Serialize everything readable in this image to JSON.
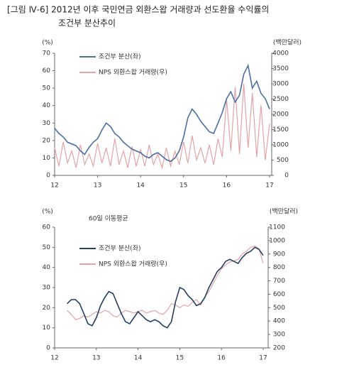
{
  "title_lines": [
    "[그림 Ⅳ-6] 2012년 이후 국민연금 외환스왑 거래량과 선도환율 수익률의",
    "조건부 분산추이"
  ],
  "chart_data": [
    {
      "type": "line",
      "ylabel": "(%)",
      "y2label": "(백만달러)",
      "xlim": [
        12,
        17.05
      ],
      "xticks": [
        12,
        13,
        14,
        15,
        16,
        17
      ],
      "ylim": [
        0,
        70
      ],
      "yticks": [
        0,
        10,
        20,
        30,
        40,
        50,
        60,
        70
      ],
      "y2lim": [
        0,
        4000
      ],
      "y2ticks": [
        0,
        500,
        1000,
        1500,
        2000,
        2500,
        3000,
        3500,
        4000
      ],
      "x": [
        12.0,
        12.1,
        12.2,
        12.3,
        12.4,
        12.5,
        12.6,
        12.7,
        12.8,
        12.9,
        13.0,
        13.1,
        13.2,
        13.3,
        13.4,
        13.5,
        13.6,
        13.7,
        13.8,
        13.9,
        14.0,
        14.1,
        14.2,
        14.3,
        14.4,
        14.5,
        14.6,
        14.7,
        14.8,
        14.9,
        15.0,
        15.1,
        15.2,
        15.3,
        15.4,
        15.5,
        15.6,
        15.7,
        15.8,
        15.9,
        16.0,
        16.1,
        16.2,
        16.3,
        16.4,
        16.5,
        16.6,
        16.7,
        16.8,
        16.9,
        17.0
      ],
      "series": [
        {
          "name": "조건부 분산(좌)",
          "color": "#4a6fa5",
          "axis": "y",
          "values": [
            27,
            24,
            22,
            19,
            18,
            17,
            14,
            12,
            16,
            19,
            21,
            26,
            30,
            28,
            24,
            22,
            19,
            17,
            15,
            14,
            13,
            11,
            10,
            12,
            13,
            11,
            9,
            8,
            10,
            14,
            22,
            33,
            38,
            35,
            31,
            28,
            25,
            24,
            30,
            36,
            44,
            48,
            42,
            46,
            58,
            63,
            50,
            54,
            47,
            44,
            38
          ]
        },
        {
          "name": "NPS 외환스왑 거래량(우)",
          "color": "#e4a3a6",
          "axis": "y2",
          "values": [
            900,
            300,
            1100,
            400,
            800,
            250,
            1000,
            350,
            700,
            300,
            1050,
            400,
            900,
            300,
            1200,
            350,
            800,
            250,
            950,
            300,
            850,
            300,
            1000,
            350,
            700,
            250,
            900,
            300,
            800,
            350,
            1100,
            400,
            1300,
            500,
            900,
            400,
            1000,
            350,
            1200,
            600,
            2500,
            800,
            2900,
            700,
            3000,
            900,
            2700,
            600,
            2300,
            500,
            1700
          ]
        }
      ]
    },
    {
      "type": "line",
      "ylabel": "(%)",
      "y2label": "(백만달러)",
      "annotation": "60일 이동평균",
      "xlim": [
        12,
        17.12
      ],
      "xticks": [
        12,
        13,
        14,
        15,
        16,
        17
      ],
      "ylim": [
        0,
        60
      ],
      "yticks": [
        0,
        10,
        20,
        30,
        40,
        50,
        60
      ],
      "y2lim": [
        200,
        1100
      ],
      "y2ticks": [
        200,
        300,
        400,
        500,
        600,
        700,
        800,
        900,
        1000,
        1100
      ],
      "x": [
        12.3,
        12.4,
        12.5,
        12.6,
        12.7,
        12.8,
        12.9,
        13.0,
        13.1,
        13.2,
        13.3,
        13.4,
        13.5,
        13.6,
        13.7,
        13.8,
        13.9,
        14.0,
        14.1,
        14.2,
        14.3,
        14.4,
        14.5,
        14.6,
        14.7,
        14.8,
        14.9,
        15.0,
        15.1,
        15.2,
        15.3,
        15.4,
        15.5,
        15.6,
        15.7,
        15.8,
        15.9,
        16.0,
        16.1,
        16.2,
        16.3,
        16.4,
        16.5,
        16.6,
        16.7,
        16.8,
        16.9,
        17.0
      ],
      "series": [
        {
          "name": "조건부 분산(좌)",
          "color": "#243f66",
          "axis": "y",
          "values": [
            22,
            24,
            24,
            22,
            17,
            12,
            11,
            15,
            21,
            25,
            28,
            27,
            22,
            17,
            13,
            12,
            15,
            18,
            16,
            14,
            13,
            14,
            13,
            11,
            10,
            13,
            23,
            30,
            29,
            26,
            24,
            21,
            22,
            25,
            30,
            34,
            38,
            40,
            43,
            44,
            43,
            42,
            45,
            47,
            48,
            50,
            49,
            46
          ]
        },
        {
          "name": "NPS 외환스왑 거래량(우)",
          "color": "#e4a3a6",
          "axis": "y2",
          "values": [
            480,
            450,
            410,
            420,
            440,
            430,
            450,
            470,
            460,
            480,
            470,
            440,
            430,
            460,
            480,
            470,
            460,
            470,
            480,
            460,
            470,
            480,
            460,
            450,
            480,
            530,
            520,
            500,
            520,
            510,
            540,
            560,
            520,
            580,
            620,
            680,
            740,
            790,
            820,
            840,
            850,
            860,
            900,
            920,
            950,
            960,
            940,
            830
          ]
        }
      ]
    }
  ]
}
